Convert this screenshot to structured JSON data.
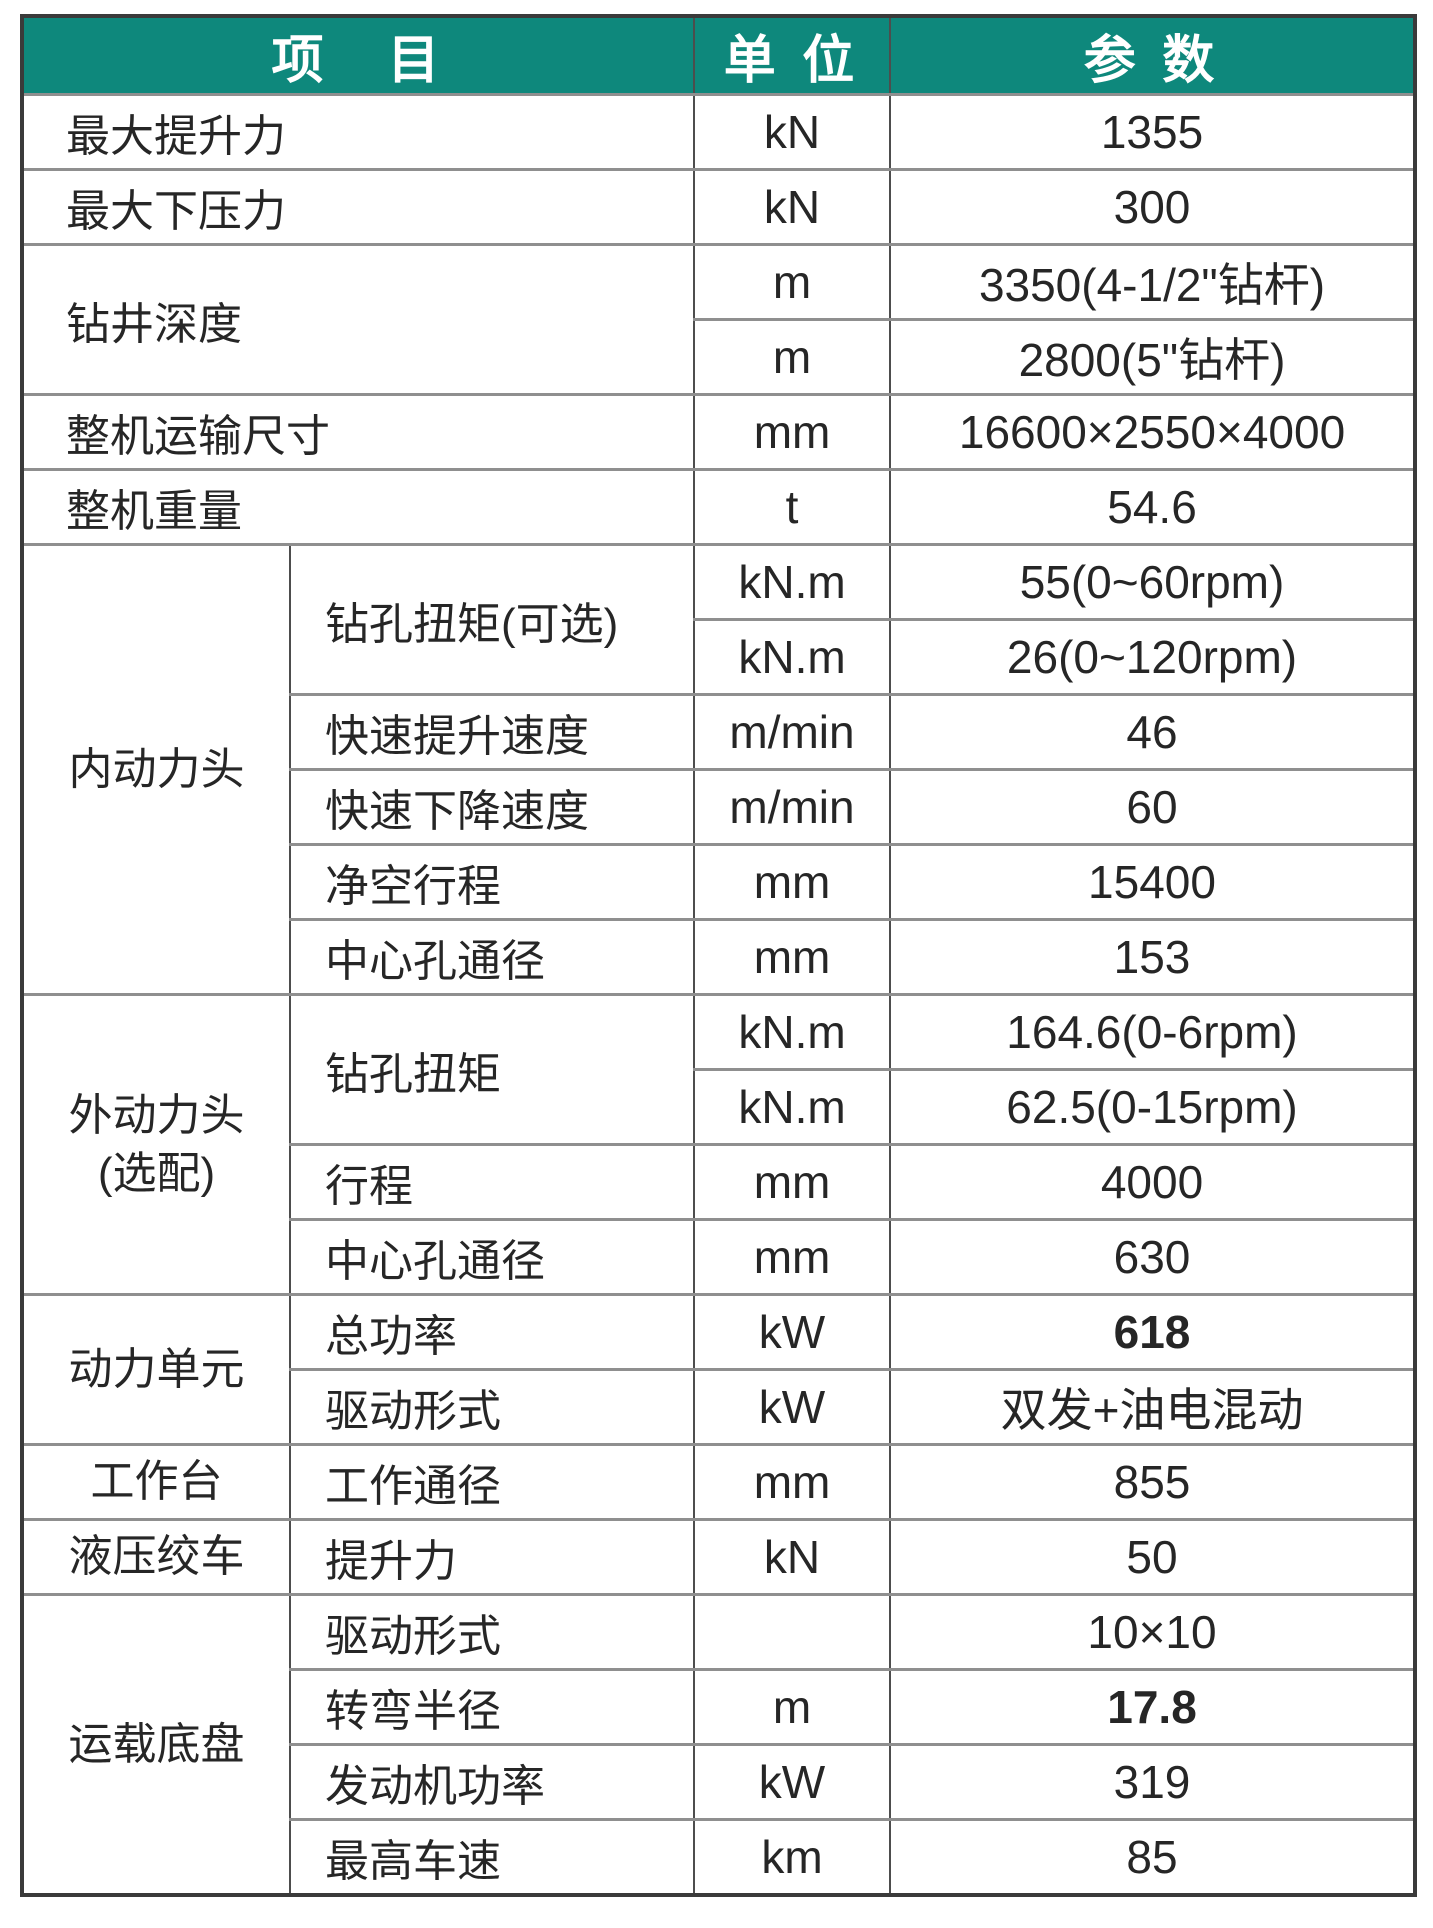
{
  "theme": {
    "header_bg": "#0E887C",
    "header_text": "#FFFFFF",
    "row_line": "#8F8F8F",
    "col_line": "#4D4D4D",
    "outer_line": "#3A3A3A",
    "body_text": "#262626"
  },
  "header": {
    "col_item": "项　目",
    "col_unit": "单 位",
    "col_param": "参 数"
  },
  "table": {
    "rows": [
      {
        "cells": [
          {
            "text": "最大提升力",
            "kind": "item-wide",
            "colspan": 2
          },
          {
            "text": "kN",
            "kind": "unit"
          },
          {
            "text": "1355",
            "kind": "value"
          }
        ]
      },
      {
        "cells": [
          {
            "text": "最大下压力",
            "kind": "item-wide",
            "colspan": 2
          },
          {
            "text": "kN",
            "kind": "unit"
          },
          {
            "text": "300",
            "kind": "value"
          }
        ]
      },
      {
        "cells": [
          {
            "text": "钻井深度",
            "kind": "item-wide",
            "colspan": 2,
            "rowspan": 2
          },
          {
            "text": "m",
            "kind": "unit"
          },
          {
            "text": "3350(4-1/2\"钻杆)",
            "kind": "value"
          }
        ]
      },
      {
        "cells": [
          {
            "text": "m",
            "kind": "unit"
          },
          {
            "text": "2800(5\"钻杆)",
            "kind": "value"
          }
        ]
      },
      {
        "cells": [
          {
            "text": "整机运输尺寸",
            "kind": "item-wide",
            "colspan": 2
          },
          {
            "text": "mm",
            "kind": "unit"
          },
          {
            "text": "16600×2550×4000",
            "kind": "value"
          }
        ]
      },
      {
        "cells": [
          {
            "text": "整机重量",
            "kind": "item-wide",
            "colspan": 2
          },
          {
            "text": "t",
            "kind": "unit"
          },
          {
            "text": "54.6",
            "kind": "value"
          }
        ]
      },
      {
        "cells": [
          {
            "text": "内动力头",
            "kind": "group",
            "rowspan": 6
          },
          {
            "text": "钻孔扭矩(可选)",
            "kind": "item",
            "rowspan": 2
          },
          {
            "text": "kN.m",
            "kind": "unit"
          },
          {
            "text": "55(0~60rpm)",
            "kind": "value"
          }
        ]
      },
      {
        "cells": [
          {
            "text": "kN.m",
            "kind": "unit"
          },
          {
            "text": "26(0~120rpm)",
            "kind": "value"
          }
        ]
      },
      {
        "cells": [
          {
            "text": "快速提升速度",
            "kind": "item"
          },
          {
            "text": "m/min",
            "kind": "unit"
          },
          {
            "text": "46",
            "kind": "value"
          }
        ]
      },
      {
        "cells": [
          {
            "text": "快速下降速度",
            "kind": "item"
          },
          {
            "text": "m/min",
            "kind": "unit"
          },
          {
            "text": "60",
            "kind": "value"
          }
        ]
      },
      {
        "cells": [
          {
            "text": "净空行程",
            "kind": "item"
          },
          {
            "text": "mm",
            "kind": "unit"
          },
          {
            "text": "15400",
            "kind": "value"
          }
        ]
      },
      {
        "cells": [
          {
            "text": "中心孔通径",
            "kind": "item"
          },
          {
            "text": "mm",
            "kind": "unit"
          },
          {
            "text": "153",
            "kind": "value"
          }
        ]
      },
      {
        "cells": [
          {
            "text": "外动力头\n(选配)",
            "kind": "group",
            "rowspan": 4
          },
          {
            "text": "钻孔扭矩",
            "kind": "item",
            "rowspan": 2
          },
          {
            "text": "kN.m",
            "kind": "unit"
          },
          {
            "text": "164.6(0-6rpm)",
            "kind": "value"
          }
        ]
      },
      {
        "cells": [
          {
            "text": "kN.m",
            "kind": "unit"
          },
          {
            "text": "62.5(0-15rpm)",
            "kind": "value"
          }
        ]
      },
      {
        "cells": [
          {
            "text": "行程",
            "kind": "item"
          },
          {
            "text": "mm",
            "kind": "unit"
          },
          {
            "text": "4000",
            "kind": "value"
          }
        ]
      },
      {
        "cells": [
          {
            "text": "中心孔通径",
            "kind": "item"
          },
          {
            "text": "mm",
            "kind": "unit"
          },
          {
            "text": "630",
            "kind": "value"
          }
        ]
      },
      {
        "cells": [
          {
            "text": "动力单元",
            "kind": "group",
            "rowspan": 2
          },
          {
            "text": "总功率",
            "kind": "item"
          },
          {
            "text": "kW",
            "kind": "unit"
          },
          {
            "text": "618",
            "kind": "value",
            "bold": true
          }
        ]
      },
      {
        "cells": [
          {
            "text": "驱动形式",
            "kind": "item"
          },
          {
            "text": "kW",
            "kind": "unit"
          },
          {
            "text": "双发+油电混动",
            "kind": "value"
          }
        ]
      },
      {
        "cells": [
          {
            "text": "工作台",
            "kind": "group"
          },
          {
            "text": "工作通径",
            "kind": "item"
          },
          {
            "text": "mm",
            "kind": "unit"
          },
          {
            "text": "855",
            "kind": "value"
          }
        ]
      },
      {
        "cells": [
          {
            "text": "液压绞车",
            "kind": "group"
          },
          {
            "text": "提升力",
            "kind": "item"
          },
          {
            "text": "kN",
            "kind": "unit"
          },
          {
            "text": "50",
            "kind": "value"
          }
        ]
      },
      {
        "cells": [
          {
            "text": "运载底盘",
            "kind": "group",
            "rowspan": 4
          },
          {
            "text": "驱动形式",
            "kind": "item"
          },
          {
            "text": "",
            "kind": "unit"
          },
          {
            "text": "10×10",
            "kind": "value"
          }
        ]
      },
      {
        "cells": [
          {
            "text": "转弯半径",
            "kind": "item"
          },
          {
            "text": "m",
            "kind": "unit"
          },
          {
            "text": "17.8",
            "kind": "value",
            "bold": true
          }
        ]
      },
      {
        "cells": [
          {
            "text": "发动机功率",
            "kind": "item"
          },
          {
            "text": "kW",
            "kind": "unit"
          },
          {
            "text": "319",
            "kind": "value"
          }
        ]
      },
      {
        "cells": [
          {
            "text": "最高车速",
            "kind": "item"
          },
          {
            "text": "km",
            "kind": "unit"
          },
          {
            "text": "85",
            "kind": "value"
          }
        ]
      }
    ]
  }
}
